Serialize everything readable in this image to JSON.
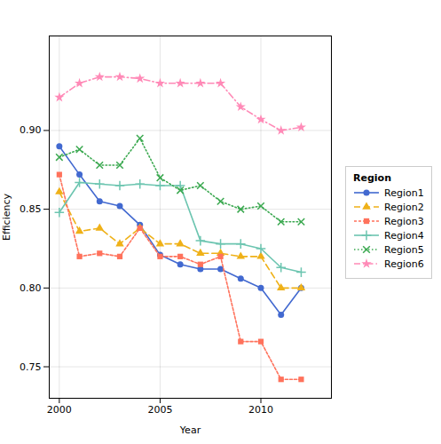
{
  "chart_data": {
    "type": "line",
    "x": [
      2000,
      2001,
      2002,
      2003,
      2004,
      2005,
      2006,
      2007,
      2008,
      2009,
      2010,
      2011,
      2012
    ],
    "series": [
      {
        "name": "Region1",
        "marker": "circle",
        "line_style": "solid",
        "values": [
          0.89,
          0.872,
          0.855,
          0.852,
          0.84,
          0.821,
          0.815,
          0.812,
          0.812,
          0.806,
          0.8,
          0.783,
          0.8
        ]
      },
      {
        "name": "Region2",
        "marker": "triangle",
        "line_style": "dashed",
        "values": [
          0.861,
          0.836,
          0.838,
          0.828,
          0.838,
          0.828,
          0.828,
          0.822,
          0.822,
          0.82,
          0.82,
          0.8,
          0.8
        ]
      },
      {
        "name": "Region3",
        "marker": "square",
        "line_style": "shortdashed",
        "values": [
          0.872,
          0.82,
          0.822,
          0.82,
          0.838,
          0.82,
          0.82,
          0.815,
          0.82,
          0.766,
          0.766,
          0.742,
          0.742
        ]
      },
      {
        "name": "Region4",
        "marker": "plus",
        "line_style": "solid",
        "values": [
          0.848,
          0.867,
          0.866,
          0.865,
          0.866,
          0.865,
          0.865,
          0.83,
          0.828,
          0.828,
          0.825,
          0.813,
          0.81
        ]
      },
      {
        "name": "Region5",
        "marker": "x",
        "line_style": "dotted",
        "values": [
          0.883,
          0.888,
          0.878,
          0.878,
          0.895,
          0.87,
          0.862,
          0.865,
          0.855,
          0.85,
          0.852,
          0.842,
          0.842
        ]
      },
      {
        "name": "Region6",
        "marker": "star",
        "line_style": "dashdot",
        "values": [
          0.921,
          0.93,
          0.934,
          0.934,
          0.933,
          0.93,
          0.93,
          0.93,
          0.93,
          0.915,
          0.907,
          0.9,
          0.902
        ]
      }
    ],
    "xlabel": "Year",
    "ylabel": "Efficiency",
    "legend_title": "Region",
    "xlim": [
      1999.5,
      2013.5
    ],
    "xticks": [
      2000,
      2005,
      2010
    ],
    "ylim": [
      0.73,
      0.96
    ],
    "yticks": [
      0.75,
      {
        "value": 0.8,
        "label": "0.80"
      },
      0.85,
      {
        "value": 0.9,
        "label": "0.90"
      }
    ],
    "grid": true,
    "legend": "right"
  }
}
